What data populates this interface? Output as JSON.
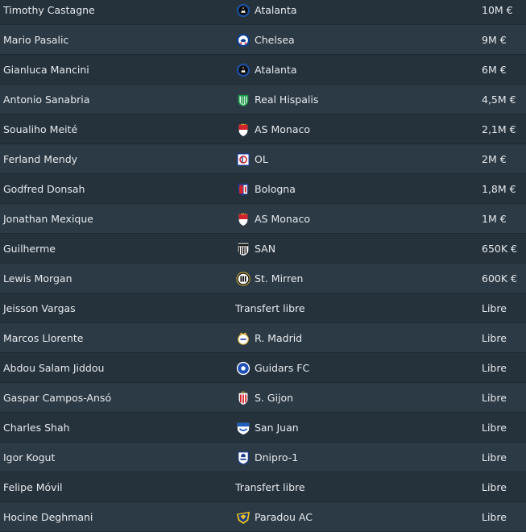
{
  "transfers": [
    {
      "player": "Timothy Castagne",
      "club": "Atalanta",
      "crest": "atalanta-crest-icon",
      "fee": "10M €"
    },
    {
      "player": "Mario Pasalic",
      "club": "Chelsea",
      "crest": "chelsea-crest-icon",
      "fee": "9M €"
    },
    {
      "player": "Gianluca Mancini",
      "club": "Atalanta",
      "crest": "atalanta-crest-icon",
      "fee": "6M €"
    },
    {
      "player": "Antonio Sanabria",
      "club": "Real Hispalis",
      "crest": "real-hispalis-crest-icon",
      "fee": "4,5M €"
    },
    {
      "player": "Soualiho Meité",
      "club": "AS Monaco",
      "crest": "as-monaco-crest-icon",
      "fee": "2,1M €"
    },
    {
      "player": "Ferland Mendy",
      "club": "OL",
      "crest": "ol-crest-icon",
      "fee": "2M €"
    },
    {
      "player": "Godfred Donsah",
      "club": "Bologna",
      "crest": "bologna-crest-icon",
      "fee": "1,8M €"
    },
    {
      "player": "Jonathan Mexique",
      "club": "AS Monaco",
      "crest": "as-monaco-crest-icon",
      "fee": "1M €"
    },
    {
      "player": "Guilherme",
      "club": "SAN",
      "crest": "santos-crest-icon",
      "fee": "650K €"
    },
    {
      "player": "Lewis Morgan",
      "club": "St. Mirren",
      "crest": "st-mirren-crest-icon",
      "fee": "600K €"
    },
    {
      "player": "Jeisson Vargas",
      "club": "Transfert libre",
      "crest": "",
      "fee": "Libre"
    },
    {
      "player": "Marcos Llorente",
      "club": "R. Madrid",
      "crest": "real-madrid-crest-icon",
      "fee": "Libre"
    },
    {
      "player": "Abdou Salam Jiddou",
      "club": "Guidars FC",
      "crest": "guidars-fc-crest-icon",
      "fee": "Libre"
    },
    {
      "player": "Gaspar Campos-Ansó",
      "club": "S. Gijon",
      "crest": "sporting-gijon-crest-icon",
      "fee": "Libre"
    },
    {
      "player": "Charles Shah",
      "club": "San Juan",
      "crest": "san-juan-crest-icon",
      "fee": "Libre"
    },
    {
      "player": "Igor Kogut",
      "club": "Dnipro-1",
      "crest": "dnipro-1-crest-icon",
      "fee": "Libre"
    },
    {
      "player": "Felipe Móvil",
      "club": "Transfert libre",
      "crest": "",
      "fee": "Libre"
    },
    {
      "player": "Hocine Deghmani",
      "club": "Paradou AC",
      "crest": "paradou-ac-crest-icon",
      "fee": "Libre"
    }
  ],
  "colors": {
    "row_odd": "#25323c",
    "row_even": "#2c3a45",
    "text": "#e6eaee"
  }
}
